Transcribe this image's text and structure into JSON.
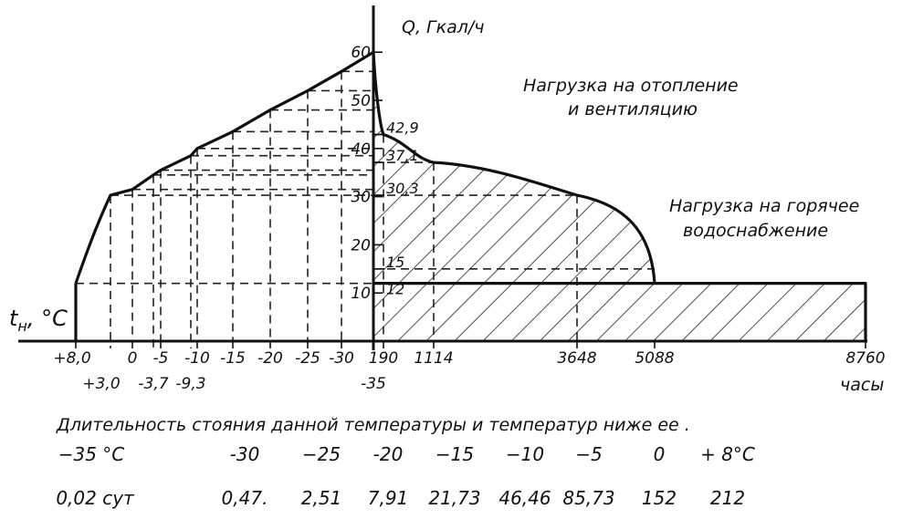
{
  "chart_data": {
    "type": "area",
    "y_axis_label": "Q, Гкал/ч",
    "left_axis_label": "t",
    "left_axis_label_sub": "н",
    "left_axis_label_unit": ", °C",
    "x_right_unit": "часы",
    "y_ticks": [
      10,
      20,
      30,
      40,
      50,
      60
    ],
    "ylim": [
      0,
      63
    ],
    "annotation_values": [
      "42,9",
      "37,1",
      "30,3",
      "15",
      "12"
    ],
    "temperature_ticks_top": [
      "+8,0",
      "0",
      "-5",
      "-10",
      "-15",
      "-20",
      "-25",
      "-30"
    ],
    "temperature_ticks_bottom": [
      "+3,0",
      "-3,7",
      "-9,3",
      "-35"
    ],
    "hour_ticks": [
      "190",
      "1114",
      "3648",
      "5088",
      "8760"
    ],
    "series": [
      {
        "name": "Нагрузка на отопление и вентиляцию",
        "label_lines": [
          "Нагрузка на отопление",
          "и вентиляцию"
        ],
        "hours": [
          0,
          190,
          1114,
          3648,
          5088
        ],
        "q": [
          60,
          42.9,
          37.1,
          30.3,
          12
        ]
      },
      {
        "name": "Нагрузка на горячее водоснабжение",
        "label_lines": [
          "Нагрузка на горячее",
          "водоснабжение"
        ],
        "hours": [
          0,
          8760
        ],
        "q": [
          12,
          12
        ]
      }
    ],
    "temperature_curve": {
      "t": [
        8,
        3,
        0,
        -3.7,
        -5,
        -9.3,
        -10,
        -15,
        -20,
        -25,
        -30,
        -35
      ],
      "q": [
        12,
        30.3,
        31.5,
        34.5,
        35.5,
        38.5,
        40,
        43.5,
        48,
        52,
        56,
        60
      ]
    },
    "duration_table": {
      "title": "Длительность стояния данной температуры и температур ниже ее .",
      "temperatures": [
        "−35 °C",
        "-30",
        "−25",
        "-20",
        "−15",
        "−10",
        "−5",
        "0",
        "+ 8°C"
      ],
      "durations": [
        "0,02 сут",
        "0,47.",
        "2,51",
        "7,91",
        "21,73",
        "46,46",
        "85,73",
        "152",
        "212"
      ]
    }
  }
}
